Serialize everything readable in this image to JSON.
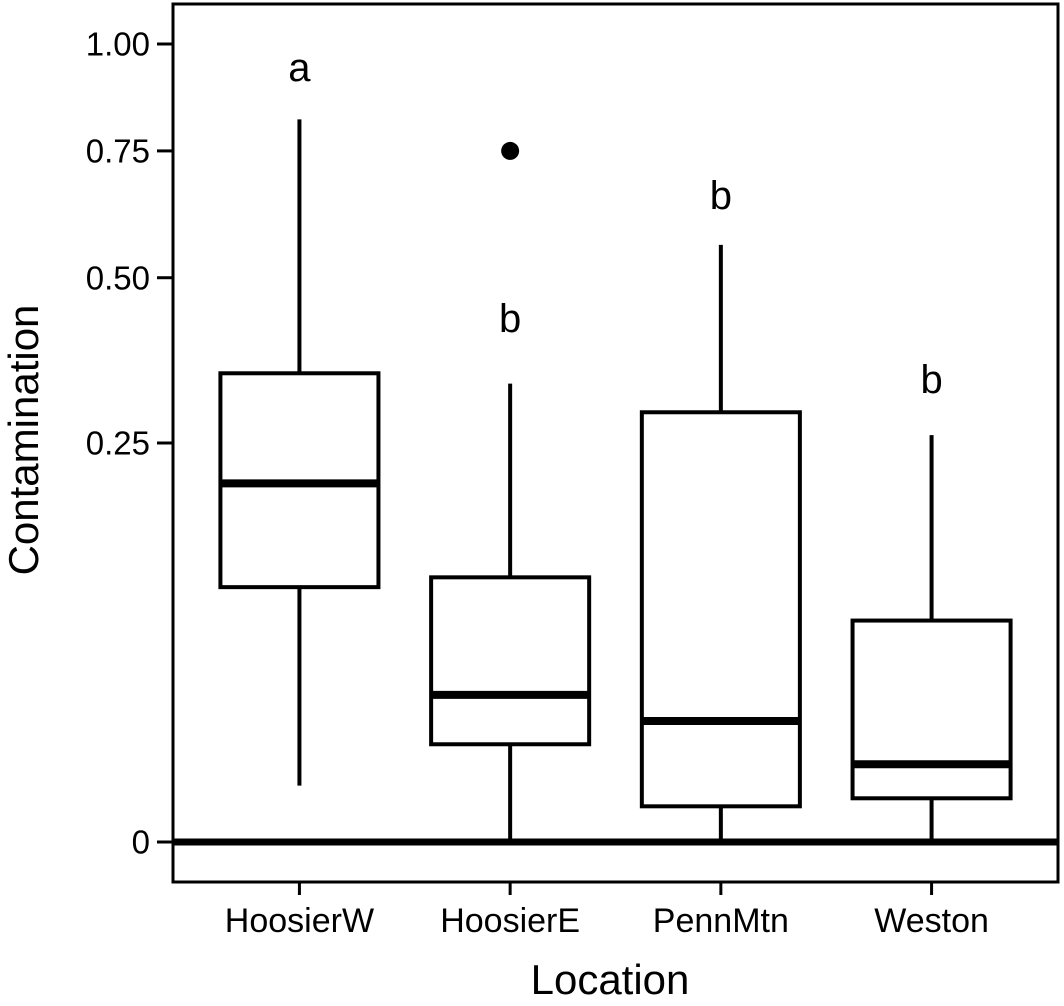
{
  "figure": {
    "background": "#ffffff",
    "foreground": "#000000"
  },
  "chart_data": {
    "type": "boxplot",
    "title": "",
    "xlabel": "Location",
    "ylabel": "Contamination",
    "y_scale": "sqrt",
    "ylim": [
      0,
      1
    ],
    "grid": false,
    "legend": "none",
    "zero_line": true,
    "yticks": [
      {
        "value": 1.0,
        "label": "1.00"
      },
      {
        "value": 0.75,
        "label": "0.75"
      },
      {
        "value": 0.5,
        "label": "0.50"
      },
      {
        "value": 0.25,
        "label": "0.25"
      },
      {
        "value": 0,
        "label": "0"
      }
    ],
    "categories": [
      "HoosierW",
      "HoosierE",
      "PennMtn",
      "Weston"
    ],
    "series": [
      {
        "name": "HoosierW",
        "letter": "a",
        "letter_y": 0.94,
        "whisker_low": 0.005,
        "q1": 0.102,
        "median": 0.202,
        "q3": 0.345,
        "whisker_high": 0.82,
        "outliers": []
      },
      {
        "name": "HoosierE",
        "letter": "b",
        "letter_y": 0.43,
        "whisker_low": 0,
        "q1": 0.015,
        "median": 0.034,
        "q3": 0.11,
        "whisker_high": 0.33,
        "outliers": [
          0.75
        ]
      },
      {
        "name": "PennMtn",
        "letter": "b",
        "letter_y": 0.655,
        "whisker_low": 0,
        "q1": 0.002,
        "median": 0.023,
        "q3": 0.29,
        "whisker_high": 0.56,
        "outliers": []
      },
      {
        "name": "Weston",
        "letter": "b",
        "letter_y": 0.335,
        "whisker_low": 0,
        "q1": 0.003,
        "median": 0.0095,
        "q3": 0.077,
        "whisker_high": 0.26,
        "outliers": []
      }
    ]
  }
}
